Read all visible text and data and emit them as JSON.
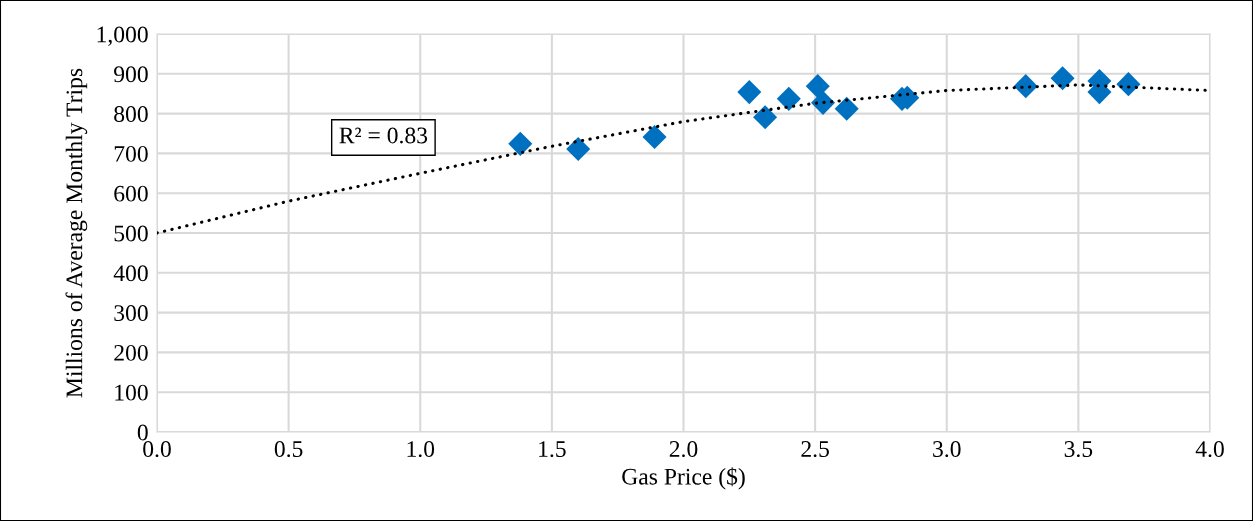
{
  "chart_data": {
    "type": "scatter",
    "xlabel": "Gas Price ($)",
    "ylabel": "Millions of Average Monthly Trips",
    "xlim": [
      0,
      4
    ],
    "xticks": [
      {
        "value": 0,
        "label": "0.0"
      },
      {
        "value": 0.5,
        "label": "0.5"
      },
      {
        "value": 1,
        "label": "1.0"
      },
      {
        "value": 1.5,
        "label": "1.5"
      },
      {
        "value": 2,
        "label": "2.0"
      },
      {
        "value": 2.5,
        "label": "2.5"
      },
      {
        "value": 3,
        "label": "3.0"
      },
      {
        "value": 3.5,
        "label": "3.5"
      },
      {
        "value": 4,
        "label": "4.0"
      }
    ],
    "ylim": [
      0,
      1000
    ],
    "yticks": [
      0,
      100,
      200,
      300,
      400,
      500,
      600,
      700,
      800,
      900,
      {
        "value": 1000,
        "label": "1,000"
      }
    ],
    "grid": true,
    "legend": false,
    "series": [
      {
        "marker": "diamond",
        "color": "#0070c0",
        "x": [
          1.38,
          1.6,
          1.89,
          2.25,
          2.31,
          2.4,
          2.51,
          2.53,
          2.62,
          2.83,
          2.85,
          3.3,
          3.44,
          3.58,
          3.58,
          3.69
        ],
        "values": [
          724,
          711,
          741,
          854,
          791,
          837,
          869,
          827,
          812,
          837,
          840,
          869,
          889,
          882,
          854,
          874
        ]
      },
      {
        "type": "line",
        "line_style": "dotted",
        "marker": "none",
        "color": "#000000",
        "x": [
          0,
          0.5,
          1,
          1.5,
          2,
          2.5,
          3,
          3.5,
          4
        ],
        "values": [
          500,
          580,
          650,
          718,
          780,
          826,
          858,
          872,
          858
        ]
      }
    ],
    "annotations": [
      "R² = 0.83"
    ]
  }
}
